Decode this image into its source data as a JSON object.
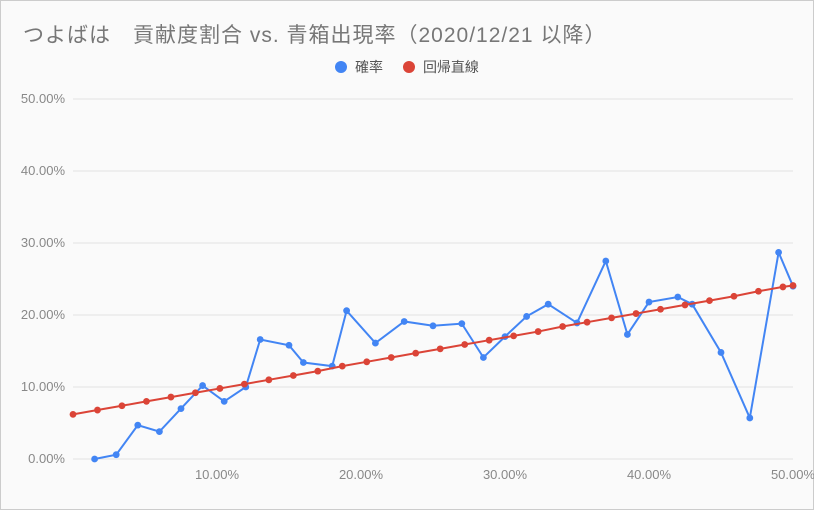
{
  "title": "つよばは　貢献度割合 vs. 青箱出現率（2020/12/21 以降）",
  "title_fontsize": 21,
  "title_color": "#777777",
  "legend": {
    "items": [
      {
        "label": "確率",
        "color": "#4285f4"
      },
      {
        "label": "回帰直線",
        "color": "#db4437"
      }
    ],
    "fontsize": 14,
    "text_color": "#555555"
  },
  "chart": {
    "type": "line",
    "background_color": "#fafafa",
    "grid_color": "#e3e3e3",
    "tick_color": "#888888",
    "tick_fontsize": 13,
    "xlim": [
      0,
      50
    ],
    "ylim": [
      0,
      50
    ],
    "xtick_step": 10,
    "ytick_step": 10,
    "xtick_format": "{v}.00%",
    "ytick_format": "{v}.00%",
    "series": [
      {
        "name": "確率",
        "color": "#4285f4",
        "line_width": 2,
        "marker": "circle",
        "marker_radius": 3.4,
        "x": [
          1.5,
          3,
          4.5,
          6,
          7.5,
          9,
          10.5,
          12,
          13,
          15,
          16,
          18,
          19,
          21,
          23,
          25,
          27,
          28.5,
          30,
          31.5,
          33,
          35,
          37,
          38.5,
          40,
          42,
          43,
          45,
          47,
          49,
          50
        ],
        "y": [
          0.0,
          0.6,
          4.7,
          3.8,
          7.0,
          10.2,
          8.0,
          10.0,
          16.6,
          15.8,
          13.4,
          12.9,
          20.6,
          16.1,
          19.1,
          18.5,
          18.8,
          14.1,
          17.0,
          19.8,
          21.5,
          18.9,
          27.5,
          17.3,
          21.8,
          22.5,
          21.5,
          14.8,
          5.7,
          28.7,
          24.0
        ]
      },
      {
        "name": "回帰直線",
        "color": "#db4437",
        "line_width": 2,
        "marker": "circle",
        "marker_radius": 3.4,
        "x": [
          0,
          1.7,
          3.4,
          5.1,
          6.8,
          8.5,
          10.2,
          11.9,
          13.6,
          15.3,
          17.0,
          18.7,
          20.4,
          22.1,
          23.8,
          25.5,
          27.2,
          28.9,
          30.6,
          32.3,
          34.0,
          35.7,
          37.4,
          39.1,
          40.8,
          42.5,
          44.2,
          45.9,
          47.6,
          49.3,
          50
        ],
        "y": [
          6.2,
          6.8,
          7.4,
          8.0,
          8.6,
          9.2,
          9.8,
          10.4,
          11.0,
          11.6,
          12.2,
          12.9,
          13.5,
          14.1,
          14.7,
          15.3,
          15.9,
          16.5,
          17.1,
          17.7,
          18.4,
          19.0,
          19.6,
          20.2,
          20.8,
          21.4,
          22.0,
          22.6,
          23.3,
          23.9,
          24.1
        ]
      }
    ]
  }
}
